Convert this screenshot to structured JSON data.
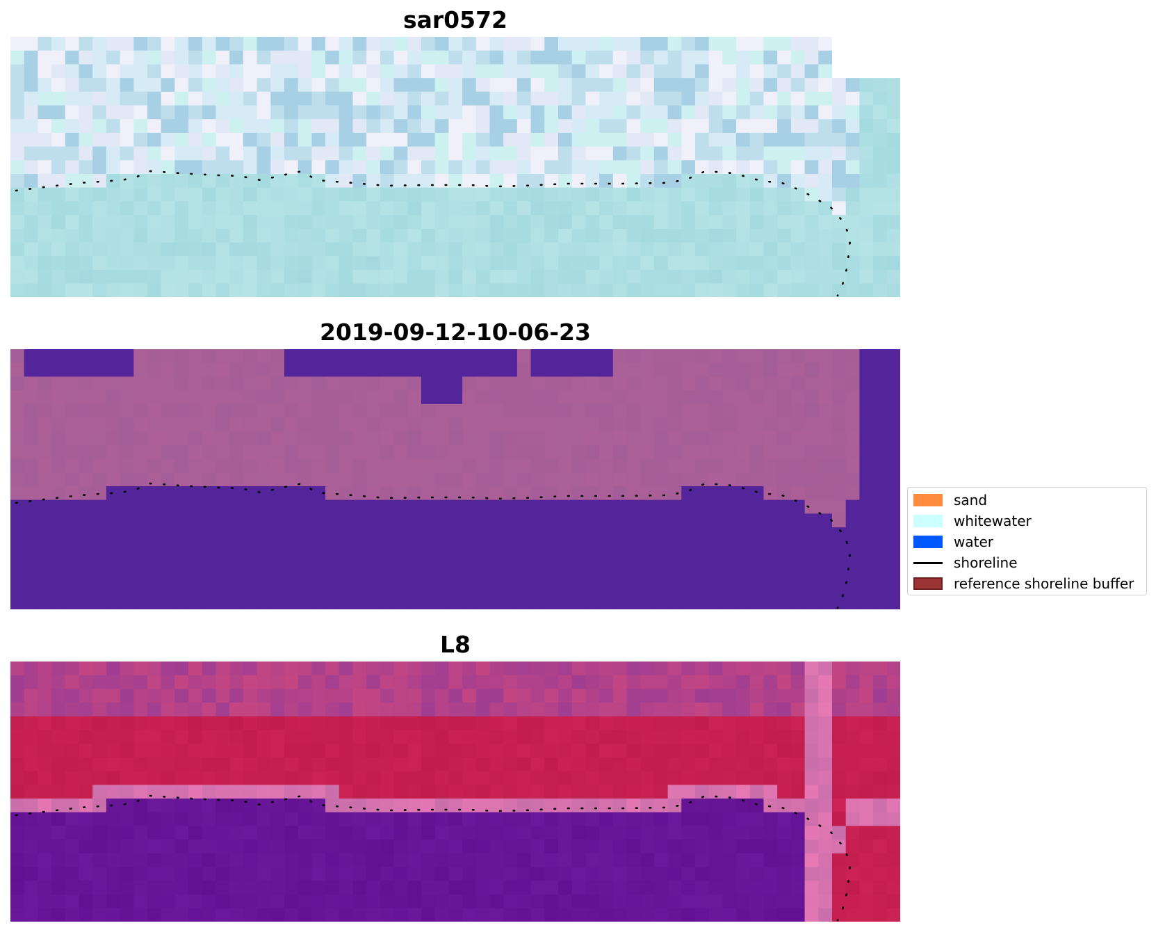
{
  "panels": [
    {
      "title": "sar0572",
      "scheme": "sar"
    },
    {
      "title": "2019-09-12-10-06-23",
      "scheme": "classified"
    },
    {
      "title": "L8",
      "scheme": "l8"
    }
  ],
  "legend": {
    "items": [
      {
        "label": "sand",
        "kind": "patch",
        "color": "#FF8C3E"
      },
      {
        "label": "whitewater",
        "kind": "patch",
        "color": "#CCFFFF"
      },
      {
        "label": "water",
        "kind": "patch",
        "color": "#0059FF"
      },
      {
        "label": "shoreline",
        "kind": "line",
        "color": "#000000"
      },
      {
        "label": "reference shoreline buffer",
        "kind": "patch",
        "color": "#9B3535"
      }
    ]
  },
  "colors": {
    "sar_land": "#C9E2EE",
    "sar_water": "#A4DADF",
    "class_land": "#A45E97",
    "class_water": "#53249A",
    "l8_land": "#C11C4C",
    "l8_water": "#621193"
  }
}
